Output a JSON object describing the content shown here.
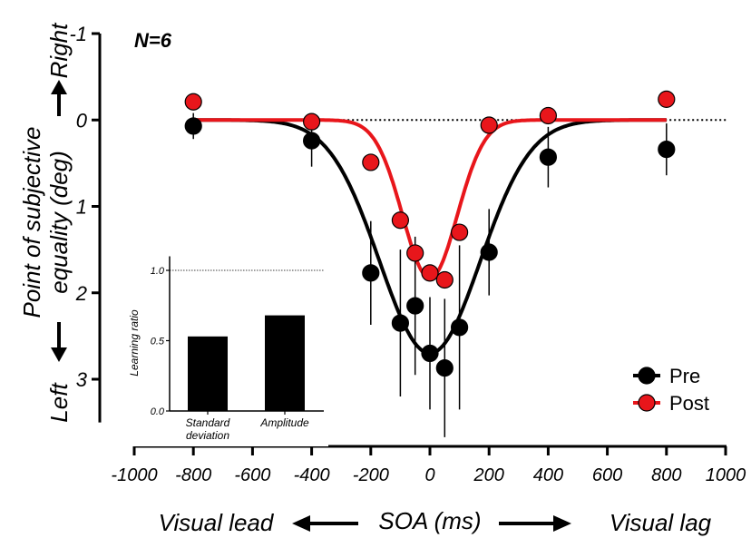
{
  "chart_data": [
    {
      "type": "scatter",
      "annotation": "N=6",
      "xlabel": "SOA (ms)",
      "x_direction_left": "Visual lead",
      "x_direction_right": "Visual lag",
      "ylabel_line1": "Point of subjective",
      "ylabel_line2": "equality (deg)",
      "y_direction_top": "Right",
      "y_direction_bottom": "Left",
      "xlim": [
        -1000,
        1000
      ],
      "ylim": [
        -1,
        3.5
      ],
      "y_inverted": true,
      "reference_line_y": 0,
      "x_ticks": [
        -1000,
        -800,
        -600,
        -400,
        -200,
        0,
        200,
        400,
        600,
        800,
        1000
      ],
      "y_ticks": [
        -1,
        0,
        1,
        2,
        3
      ],
      "legend_position": "bottom-right",
      "series": [
        {
          "name": "Pre",
          "color": "#000000",
          "x": [
            -800,
            -400,
            -200,
            -100,
            -50,
            0,
            50,
            100,
            200,
            400,
            800
          ],
          "y": [
            0.07,
            0.24,
            1.77,
            2.35,
            2.15,
            2.7,
            2.87,
            2.4,
            1.53,
            0.43,
            0.34
          ],
          "err": [
            0.15,
            0.3,
            0.6,
            0.85,
            0.8,
            0.65,
            0.8,
            0.95,
            0.5,
            0.35,
            0.3
          ],
          "fit": {
            "amplitude": 2.7,
            "center": 0,
            "sd": 170
          }
        },
        {
          "name": "Post",
          "color": "#e8161b",
          "x": [
            -800,
            -400,
            -200,
            -100,
            -50,
            0,
            50,
            100,
            200,
            400,
            800
          ],
          "y": [
            -0.21,
            0.02,
            0.49,
            1.16,
            1.54,
            1.77,
            1.85,
            1.3,
            0.06,
            -0.05,
            -0.24
          ],
          "fit": {
            "amplitude": 1.83,
            "center": 0,
            "sd": 92
          }
        }
      ]
    },
    {
      "type": "bar",
      "ylabel": "Learning ratio",
      "ylim": [
        0,
        1.1
      ],
      "y_ticks": [
        "0.0",
        "0.5",
        "1.0"
      ],
      "reference_line_y": 1.0,
      "categories": [
        "Standard deviation",
        "Amplitude"
      ],
      "category_lines": [
        [
          "Standard",
          "deviation"
        ],
        [
          "Amplitude"
        ]
      ],
      "values": [
        0.53,
        0.68
      ],
      "color": "#000000"
    }
  ]
}
